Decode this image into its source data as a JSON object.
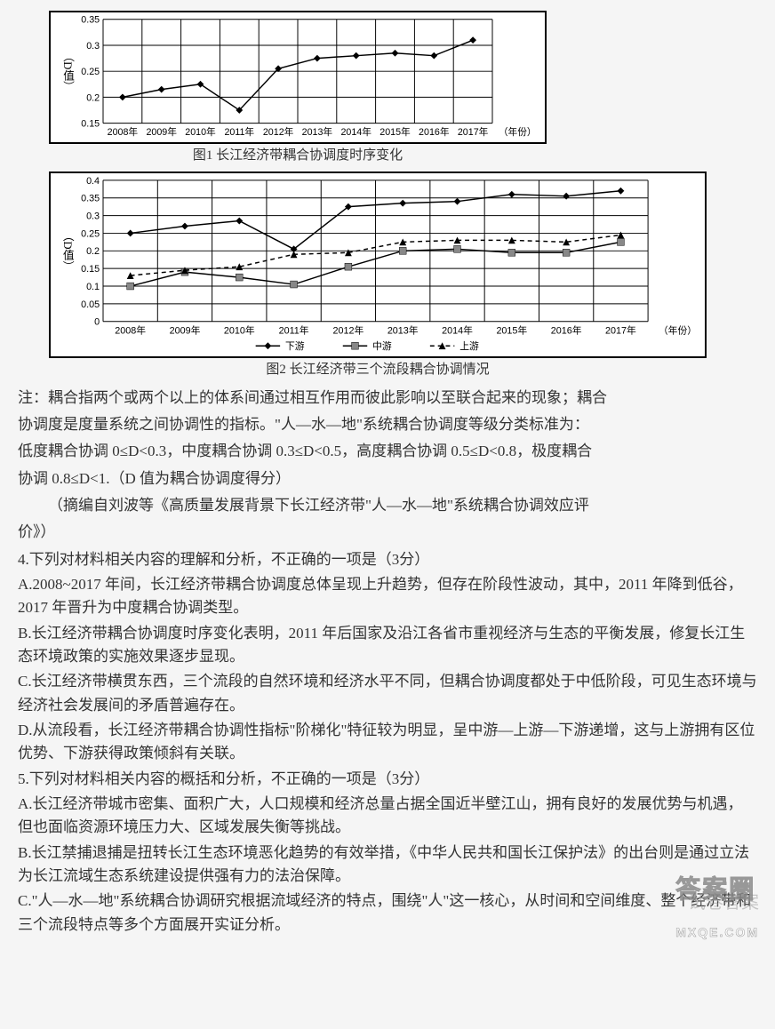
{
  "chart1": {
    "type": "line",
    "ylabel": "（D值）",
    "categories": [
      "2008年",
      "2009年",
      "2010年",
      "2011年",
      "2012年",
      "2013年",
      "2014年",
      "2015年",
      "2016年",
      "2017年"
    ],
    "xlabel_suffix": "（年份）",
    "values": [
      0.2,
      0.215,
      0.225,
      0.175,
      0.255,
      0.275,
      0.28,
      0.285,
      0.28,
      0.31
    ],
    "ymin": 0.15,
    "ymax": 0.35,
    "ystep": 0.05,
    "line_color": "#000000",
    "marker": "diamond",
    "marker_color": "#000000",
    "background": "#ffffff",
    "grid_color": "#000000",
    "caption": "图1  长江经济带耦合协调度时序变化"
  },
  "chart2": {
    "type": "line",
    "ylabel": "（D值）",
    "categories": [
      "2008年",
      "2009年",
      "2010年",
      "2011年",
      "2012年",
      "2013年",
      "2014年",
      "2015年",
      "2016年",
      "2017年"
    ],
    "xlabel_suffix": "（年份）",
    "series": [
      {
        "name": "下游",
        "marker": "diamond",
        "values": [
          0.25,
          0.27,
          0.285,
          0.205,
          0.325,
          0.335,
          0.34,
          0.36,
          0.355,
          0.37
        ]
      },
      {
        "name": "中游",
        "marker": "square",
        "values": [
          0.1,
          0.14,
          0.125,
          0.105,
          0.155,
          0.2,
          0.205,
          0.195,
          0.195,
          0.225
        ]
      },
      {
        "name": "上游",
        "marker": "triangle",
        "values": [
          0.13,
          0.145,
          0.155,
          0.19,
          0.195,
          0.225,
          0.23,
          0.23,
          0.225,
          0.245
        ],
        "dash": true
      }
    ],
    "ymin": 0,
    "ymax": 0.4,
    "ystep": 0.05,
    "line_color": "#000000",
    "background": "#ffffff",
    "grid_color": "#000000",
    "caption": "图2  长江经济带三个流段耦合协调情况",
    "legend": [
      "下游",
      "中游",
      "上游"
    ]
  },
  "note": {
    "l1": "注：耦合指两个或两个以上的体系间通过相互作用而彼此影响以至联合起来的现象；耦合",
    "l2": "协调度是度量系统之间协调性的指标。\"人—水—地\"系统耦合协调度等级分类标准为：",
    "l3": "低度耦合协调 0≤D<0.3，中度耦合协调 0.3≤D<0.5，高度耦合协调 0.5≤D<0.8，极度耦合",
    "l4": "协调 0.8≤D<1.（D 值为耦合协调度得分）",
    "src1": "（摘编自刘波等《高质量发展背景下长江经济带\"人—水—地\"系统耦合协调效应评",
    "src2": "价》）"
  },
  "q4": {
    "stem": "4.下列对材料相关内容的理解和分析，不正确的一项是（3分）",
    "a": "A.2008~2017 年间，长江经济带耦合协调度总体呈现上升趋势，但存在阶段性波动，其中，2011 年降到低谷，2017 年晋升为中度耦合协调类型。",
    "b": "B.长江经济带耦合协调度时序变化表明，2011 年后国家及沿江各省市重视经济与生态的平衡发展，修复长江生态环境政策的实施效果逐步显现。",
    "c": "C.长江经济带横贯东西，三个流段的自然环境和经济水平不同，但耦合协调度都处于中低阶段，可见生态环境与经济社会发展间的矛盾普遍存在。",
    "d": "D.从流段看，长江经济带耦合协调性指标\"阶梯化\"特征较为明显，呈中游—上游—下游递增，这与上游拥有区位优势、下游获得政策倾斜有关联。"
  },
  "q5": {
    "stem": "5.下列对材料相关内容的概括和分析，不正确的一项是（3分）",
    "a": "A.长江经济带城市密集、面积广大，人口规模和经济总量占据全国近半壁江山，拥有良好的发展优势与机遇，但也面临资源环境压力大、区域发展失衡等挑战。",
    "b": "B.长江禁捕退捕是扭转长江生态环境恶化趋势的有效举措，《中华人民共和国长江保护法》的出台则是通过立法为长江流域生态系统建设提供强有力的法治保障。",
    "c": "C.\"人—水—地\"系统耦合协调研究根据流域经济的特点，围绕\"人\"这一核心，从时间和空间维度、整个经济带和三个流段特点等多个方面展开实证分析。"
  },
  "watermark": {
    "main": "答案圈",
    "sub": "MXQE.COM"
  }
}
